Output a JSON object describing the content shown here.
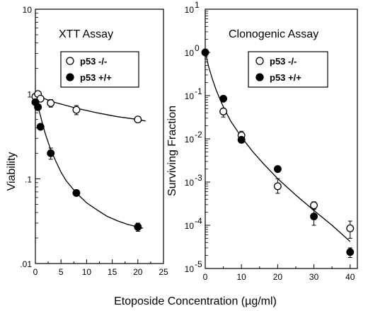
{
  "figure": {
    "xlabel": "Etoposide Concentration  (µg/ml)"
  },
  "chart_data": [
    {
      "type": "scatter",
      "title": "XTT Assay",
      "xlabel": "",
      "ylabel": "Viability",
      "xlim": [
        0,
        25
      ],
      "ylim": [
        0.01,
        10
      ],
      "yscale": "log",
      "xticks": [
        0,
        5,
        10,
        15,
        20,
        25
      ],
      "xtick_labels": [
        "0",
        "5",
        "10",
        "15",
        "20",
        "25"
      ],
      "yticks": [
        0.01,
        0.1,
        1,
        10
      ],
      "ytick_labels": [
        ".01",
        ".1",
        "1",
        "10"
      ],
      "legend_position": "top-right",
      "series": [
        {
          "name": "p53 -/-",
          "marker": "open-circle",
          "points": [
            {
              "x": 0,
              "y": 0.93
            },
            {
              "x": 0.5,
              "y": 1.0
            },
            {
              "x": 1,
              "y": 0.88
            },
            {
              "x": 3,
              "y": 0.78,
              "err": 0.08
            },
            {
              "x": 8,
              "y": 0.65,
              "err": 0.08
            },
            {
              "x": 20,
              "y": 0.5
            }
          ],
          "fit": [
            [
              0,
              0.98
            ],
            [
              1,
              0.92
            ],
            [
              2,
              0.87
            ],
            [
              3,
              0.82
            ],
            [
              5,
              0.76
            ],
            [
              8,
              0.68
            ],
            [
              12,
              0.6
            ],
            [
              16,
              0.54
            ],
            [
              20,
              0.5
            ],
            [
              21.5,
              0.48
            ]
          ]
        },
        {
          "name": "p53 +/+",
          "marker": "filled-circle",
          "points": [
            {
              "x": 0,
              "y": 0.8
            },
            {
              "x": 0.5,
              "y": 0.7
            },
            {
              "x": 1,
              "y": 0.41
            },
            {
              "x": 3,
              "y": 0.2,
              "err": 0.03
            },
            {
              "x": 8,
              "y": 0.068
            },
            {
              "x": 20,
              "y": 0.027,
              "err": 0.003
            }
          ],
          "fit": [
            [
              0,
              0.9
            ],
            [
              0.5,
              0.72
            ],
            [
              1,
              0.55
            ],
            [
              1.5,
              0.42
            ],
            [
              2,
              0.33
            ],
            [
              3,
              0.22
            ],
            [
              4,
              0.16
            ],
            [
              5,
              0.12
            ],
            [
              6,
              0.095
            ],
            [
              8,
              0.068
            ],
            [
              10,
              0.052
            ],
            [
              12,
              0.043
            ],
            [
              14,
              0.036
            ],
            [
              16,
              0.032
            ],
            [
              18,
              0.029
            ],
            [
              20,
              0.027
            ],
            [
              21,
              0.026
            ]
          ]
        }
      ]
    },
    {
      "type": "scatter",
      "title": "Clonogenic Assay",
      "xlabel": "",
      "ylabel": "Surviving Fraction",
      "xlim": [
        0,
        42
      ],
      "ylim": [
        1e-05,
        10
      ],
      "yscale": "log",
      "xticks": [
        0,
        10,
        20,
        30,
        40
      ],
      "xtick_labels": [
        "0",
        "10",
        "20",
        "30",
        "40"
      ],
      "yticks": [
        1e-05,
        0.0001,
        0.001,
        0.01,
        0.1,
        1,
        10
      ],
      "ytick_base": "10",
      "ytick_exponents": [
        "-5",
        "-4",
        "-3",
        "-2",
        "-1",
        "0",
        "1"
      ],
      "legend_position": "top-right",
      "series": [
        {
          "name": "p53 -/-",
          "marker": "open-circle",
          "points": [
            {
              "x": 5,
              "y": 0.043,
              "err_lo": 0.011,
              "err_hi": 0.008
            },
            {
              "x": 10,
              "y": 0.012,
              "err_lo": 0.003,
              "err_hi": 0.003
            },
            {
              "x": 20,
              "y": 0.0008,
              "err_lo": 0.00025,
              "err_hi": 0.0004
            },
            {
              "x": 30,
              "y": 0.00029,
              "err_lo": 6e-05,
              "err_hi": 6e-05
            },
            {
              "x": 40,
              "y": 8.5e-05,
              "err_lo": 3.5e-05,
              "err_hi": 4e-05
            }
          ]
        },
        {
          "name": "p53 +/+",
          "marker": "filled-circle",
          "points": [
            {
              "x": 0,
              "y": 1.0
            },
            {
              "x": 5,
              "y": 0.085
            },
            {
              "x": 10,
              "y": 0.0095
            },
            {
              "x": 20,
              "y": 0.002
            },
            {
              "x": 30,
              "y": 0.00016,
              "err_lo": 6e-05,
              "err_hi": 8e-05
            },
            {
              "x": 40,
              "y": 2.4e-05,
              "err_lo": 6e-06,
              "err_hi": 6e-06
            }
          ]
        }
      ],
      "fit": [
        [
          0,
          1.0
        ],
        [
          1,
          0.45
        ],
        [
          2,
          0.24
        ],
        [
          3,
          0.135
        ],
        [
          4,
          0.085
        ],
        [
          5,
          0.055
        ],
        [
          7,
          0.026
        ],
        [
          10,
          0.011
        ],
        [
          13,
          0.0052
        ],
        [
          16,
          0.0027
        ],
        [
          20,
          0.0012
        ],
        [
          25,
          0.0005
        ],
        [
          30,
          0.00022
        ],
        [
          35,
          0.0001
        ],
        [
          40,
          4.2e-05
        ]
      ]
    }
  ]
}
